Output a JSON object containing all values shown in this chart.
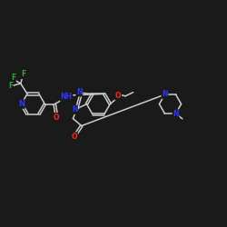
{
  "background_color": "#1a1a1a",
  "bond_color": "#cccccc",
  "atom_colors": {
    "N": "#3333ff",
    "O": "#ff2222",
    "F": "#33aa33",
    "C": "#cccccc"
  },
  "font_size": 6.0,
  "bond_width": 1.1,
  "xlim": [
    0,
    12
  ],
  "ylim": [
    0,
    10
  ]
}
